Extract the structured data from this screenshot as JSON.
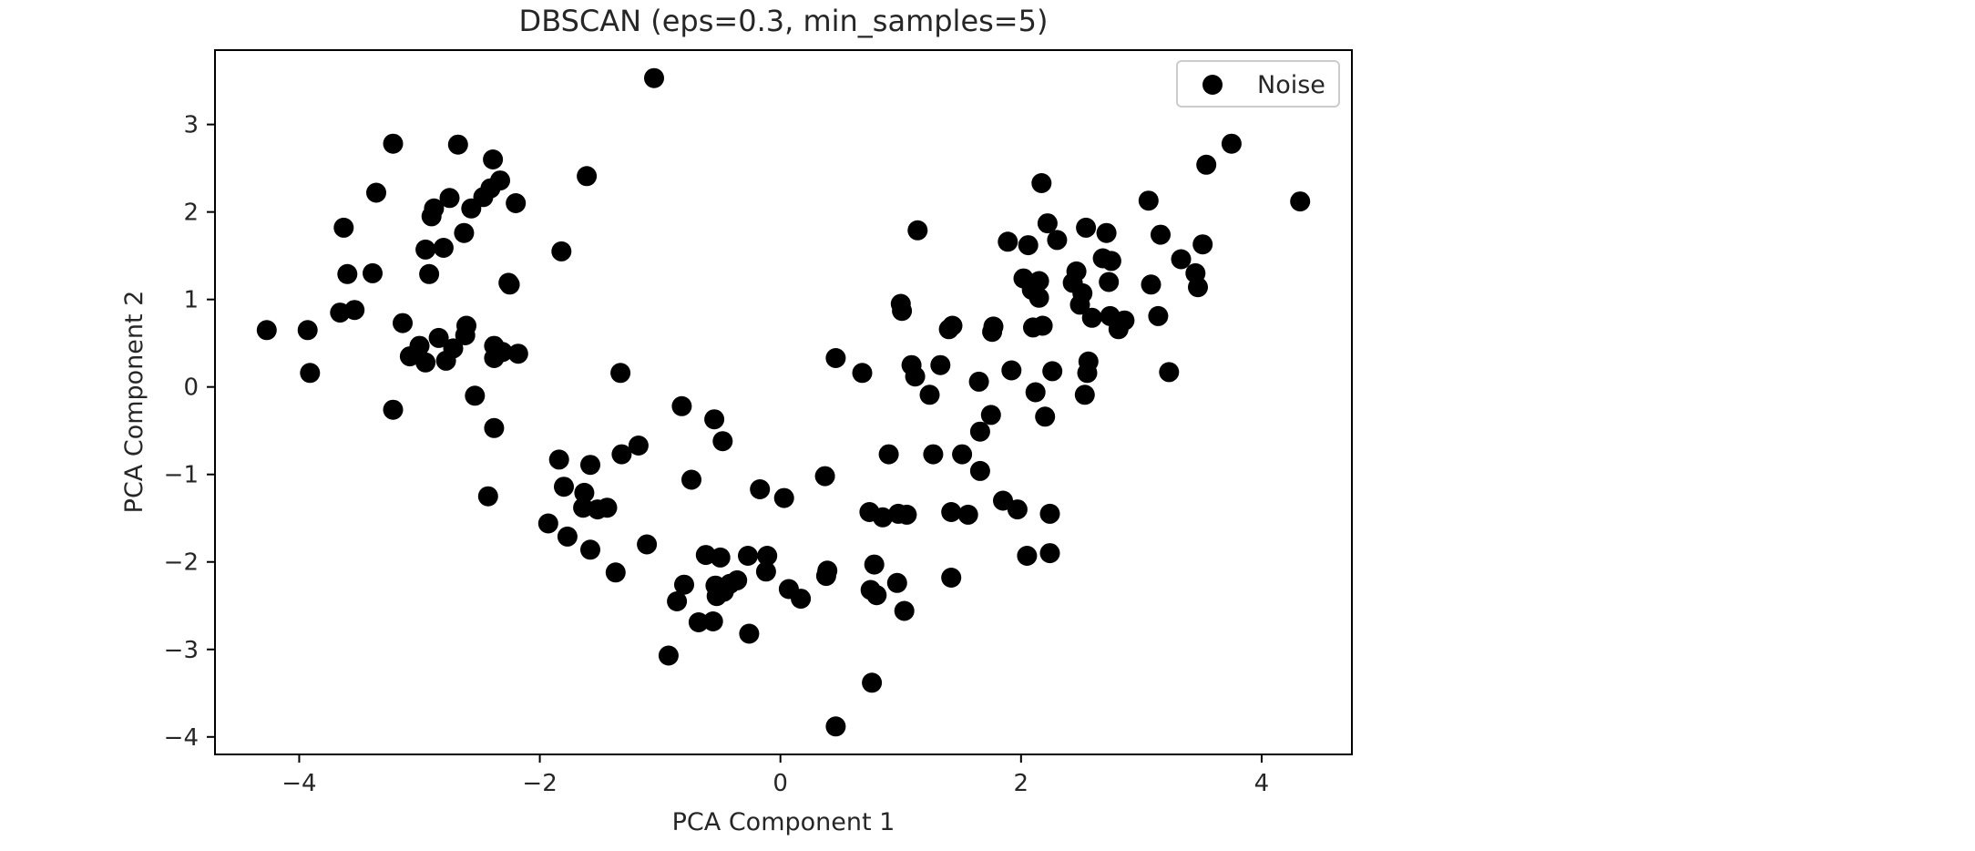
{
  "chart_data": {
    "type": "scatter",
    "title": "DBSCAN (eps=0.3, min_samples=5)",
    "xlabel": "PCA Component 1",
    "ylabel": "PCA Component 2",
    "xlim": [
      -4.7,
      4.75
    ],
    "ylim": [
      -4.2,
      3.85
    ],
    "xticks": [
      -4,
      -2,
      0,
      2,
      4
    ],
    "yticks": [
      -4,
      -3,
      -2,
      -1,
      0,
      1,
      2,
      3
    ],
    "xtick_labels": [
      "−4",
      "−2",
      "0",
      "2",
      "4"
    ],
    "ytick_labels": [
      "−4",
      "−3",
      "−2",
      "−1",
      "0",
      "1",
      "2",
      "3"
    ],
    "grid": false,
    "legend_position": "top-right",
    "series": [
      {
        "name": "Noise",
        "color": "#000000",
        "points": [
          [
            -1.05,
            3.53
          ],
          [
            -4.27,
            0.65
          ],
          [
            -3.93,
            0.65
          ],
          [
            -3.91,
            0.16
          ],
          [
            -3.63,
            1.82
          ],
          [
            -3.6,
            1.29
          ],
          [
            -3.54,
            0.88
          ],
          [
            -3.66,
            0.85
          ],
          [
            -3.39,
            1.3
          ],
          [
            -3.36,
            2.22
          ],
          [
            -3.22,
            2.78
          ],
          [
            -3.22,
            -0.26
          ],
          [
            -3.14,
            0.73
          ],
          [
            -3.08,
            0.35
          ],
          [
            -3.0,
            0.47
          ],
          [
            -2.95,
            0.28
          ],
          [
            -2.95,
            1.57
          ],
          [
            -2.92,
            1.29
          ],
          [
            -2.9,
            1.95
          ],
          [
            -2.88,
            2.04
          ],
          [
            -2.84,
            0.56
          ],
          [
            -2.8,
            1.59
          ],
          [
            -2.78,
            0.3
          ],
          [
            -2.75,
            2.16
          ],
          [
            -2.72,
            0.44
          ],
          [
            -2.68,
            2.77
          ],
          [
            -2.63,
            1.76
          ],
          [
            -2.62,
            0.59
          ],
          [
            -2.61,
            0.7
          ],
          [
            -2.57,
            2.04
          ],
          [
            -2.54,
            -0.1
          ],
          [
            -2.47,
            2.17
          ],
          [
            -2.43,
            -1.25
          ],
          [
            -2.41,
            2.27
          ],
          [
            -2.39,
            2.6
          ],
          [
            -2.38,
            -0.47
          ],
          [
            -2.38,
            0.47
          ],
          [
            -2.38,
            0.33
          ],
          [
            -2.33,
            2.36
          ],
          [
            -2.31,
            0.4
          ],
          [
            -2.26,
            1.19
          ],
          [
            -2.25,
            1.17
          ],
          [
            -2.2,
            2.1
          ],
          [
            -2.18,
            0.38
          ],
          [
            -1.82,
            1.55
          ],
          [
            -1.93,
            -1.56
          ],
          [
            -1.84,
            -0.83
          ],
          [
            -1.8,
            -1.14
          ],
          [
            -1.77,
            -1.71
          ],
          [
            -1.64,
            -1.38
          ],
          [
            -1.63,
            -1.21
          ],
          [
            -1.61,
            2.41
          ],
          [
            -1.58,
            -1.86
          ],
          [
            -1.58,
            -0.89
          ],
          [
            -1.52,
            -1.4
          ],
          [
            -1.44,
            -1.38
          ],
          [
            -1.37,
            -2.12
          ],
          [
            -1.32,
            -0.77
          ],
          [
            -1.33,
            0.16
          ],
          [
            -1.18,
            -0.67
          ],
          [
            -1.11,
            -1.8
          ],
          [
            -0.93,
            -3.07
          ],
          [
            -0.86,
            -2.45
          ],
          [
            -0.82,
            -0.22
          ],
          [
            -0.8,
            -2.26
          ],
          [
            -0.74,
            -1.06
          ],
          [
            -0.68,
            -2.69
          ],
          [
            -0.62,
            -1.92
          ],
          [
            -0.56,
            -2.68
          ],
          [
            -0.55,
            -0.37
          ],
          [
            -0.54,
            -2.27
          ],
          [
            -0.53,
            -2.39
          ],
          [
            -0.5,
            -1.95
          ],
          [
            -0.48,
            -0.62
          ],
          [
            -0.47,
            -2.34
          ],
          [
            -0.42,
            -2.25
          ],
          [
            -0.36,
            -2.21
          ],
          [
            -0.27,
            -1.93
          ],
          [
            -0.26,
            -2.82
          ],
          [
            -0.17,
            -1.17
          ],
          [
            -0.11,
            -1.93
          ],
          [
            -0.12,
            -2.11
          ],
          [
            0.03,
            -1.27
          ],
          [
            0.07,
            -2.31
          ],
          [
            0.17,
            -2.42
          ],
          [
            0.37,
            -1.02
          ],
          [
            0.38,
            -2.16
          ],
          [
            0.39,
            -2.1
          ],
          [
            0.46,
            -3.88
          ],
          [
            0.46,
            0.33
          ],
          [
            0.68,
            0.16
          ],
          [
            0.74,
            -1.43
          ],
          [
            0.75,
            -2.32
          ],
          [
            0.76,
            -3.38
          ],
          [
            0.78,
            -2.03
          ],
          [
            0.8,
            -2.38
          ],
          [
            0.85,
            -1.49
          ],
          [
            0.9,
            -0.77
          ],
          [
            0.97,
            -2.24
          ],
          [
            0.98,
            -1.45
          ],
          [
            1.0,
            0.95
          ],
          [
            1.01,
            0.87
          ],
          [
            1.03,
            -2.56
          ],
          [
            1.05,
            -1.46
          ],
          [
            1.09,
            0.25
          ],
          [
            1.12,
            0.12
          ],
          [
            1.14,
            1.79
          ],
          [
            1.24,
            -0.09
          ],
          [
            1.27,
            -0.77
          ],
          [
            1.33,
            0.25
          ],
          [
            1.4,
            0.66
          ],
          [
            1.42,
            -1.43
          ],
          [
            1.42,
            -2.18
          ],
          [
            1.43,
            0.7
          ],
          [
            1.51,
            -0.77
          ],
          [
            1.56,
            -1.46
          ],
          [
            1.65,
            0.06
          ],
          [
            1.66,
            -0.51
          ],
          [
            1.66,
            -0.96
          ],
          [
            1.75,
            -0.32
          ],
          [
            1.76,
            0.63
          ],
          [
            1.77,
            0.69
          ],
          [
            1.85,
            -1.3
          ],
          [
            1.89,
            1.66
          ],
          [
            1.92,
            0.19
          ],
          [
            1.97,
            -1.4
          ],
          [
            2.02,
            1.24
          ],
          [
            2.05,
            -1.93
          ],
          [
            2.06,
            1.62
          ],
          [
            2.09,
            1.11
          ],
          [
            2.1,
            0.68
          ],
          [
            2.12,
            -0.06
          ],
          [
            2.15,
            1.02
          ],
          [
            2.15,
            1.21
          ],
          [
            2.17,
            2.33
          ],
          [
            2.18,
            0.7
          ],
          [
            2.2,
            -0.34
          ],
          [
            2.22,
            1.87
          ],
          [
            2.24,
            -1.9
          ],
          [
            2.24,
            -1.45
          ],
          [
            2.26,
            0.18
          ],
          [
            2.3,
            1.68
          ],
          [
            2.43,
            1.19
          ],
          [
            2.46,
            1.32
          ],
          [
            2.49,
            0.94
          ],
          [
            2.51,
            1.07
          ],
          [
            2.53,
            -0.09
          ],
          [
            2.54,
            1.82
          ],
          [
            2.55,
            0.16
          ],
          [
            2.56,
            0.29
          ],
          [
            2.59,
            0.79
          ],
          [
            2.68,
            1.47
          ],
          [
            2.71,
            1.76
          ],
          [
            2.73,
            1.2
          ],
          [
            2.74,
            0.81
          ],
          [
            2.75,
            1.44
          ],
          [
            2.81,
            0.66
          ],
          [
            2.86,
            0.76
          ],
          [
            3.06,
            2.13
          ],
          [
            3.08,
            1.17
          ],
          [
            3.14,
            0.81
          ],
          [
            3.16,
            1.74
          ],
          [
            3.23,
            0.17
          ],
          [
            3.33,
            1.46
          ],
          [
            3.45,
            1.3
          ],
          [
            3.47,
            1.14
          ],
          [
            3.51,
            1.63
          ],
          [
            3.54,
            2.54
          ],
          [
            3.75,
            2.78
          ],
          [
            4.32,
            2.12
          ]
        ]
      }
    ]
  }
}
